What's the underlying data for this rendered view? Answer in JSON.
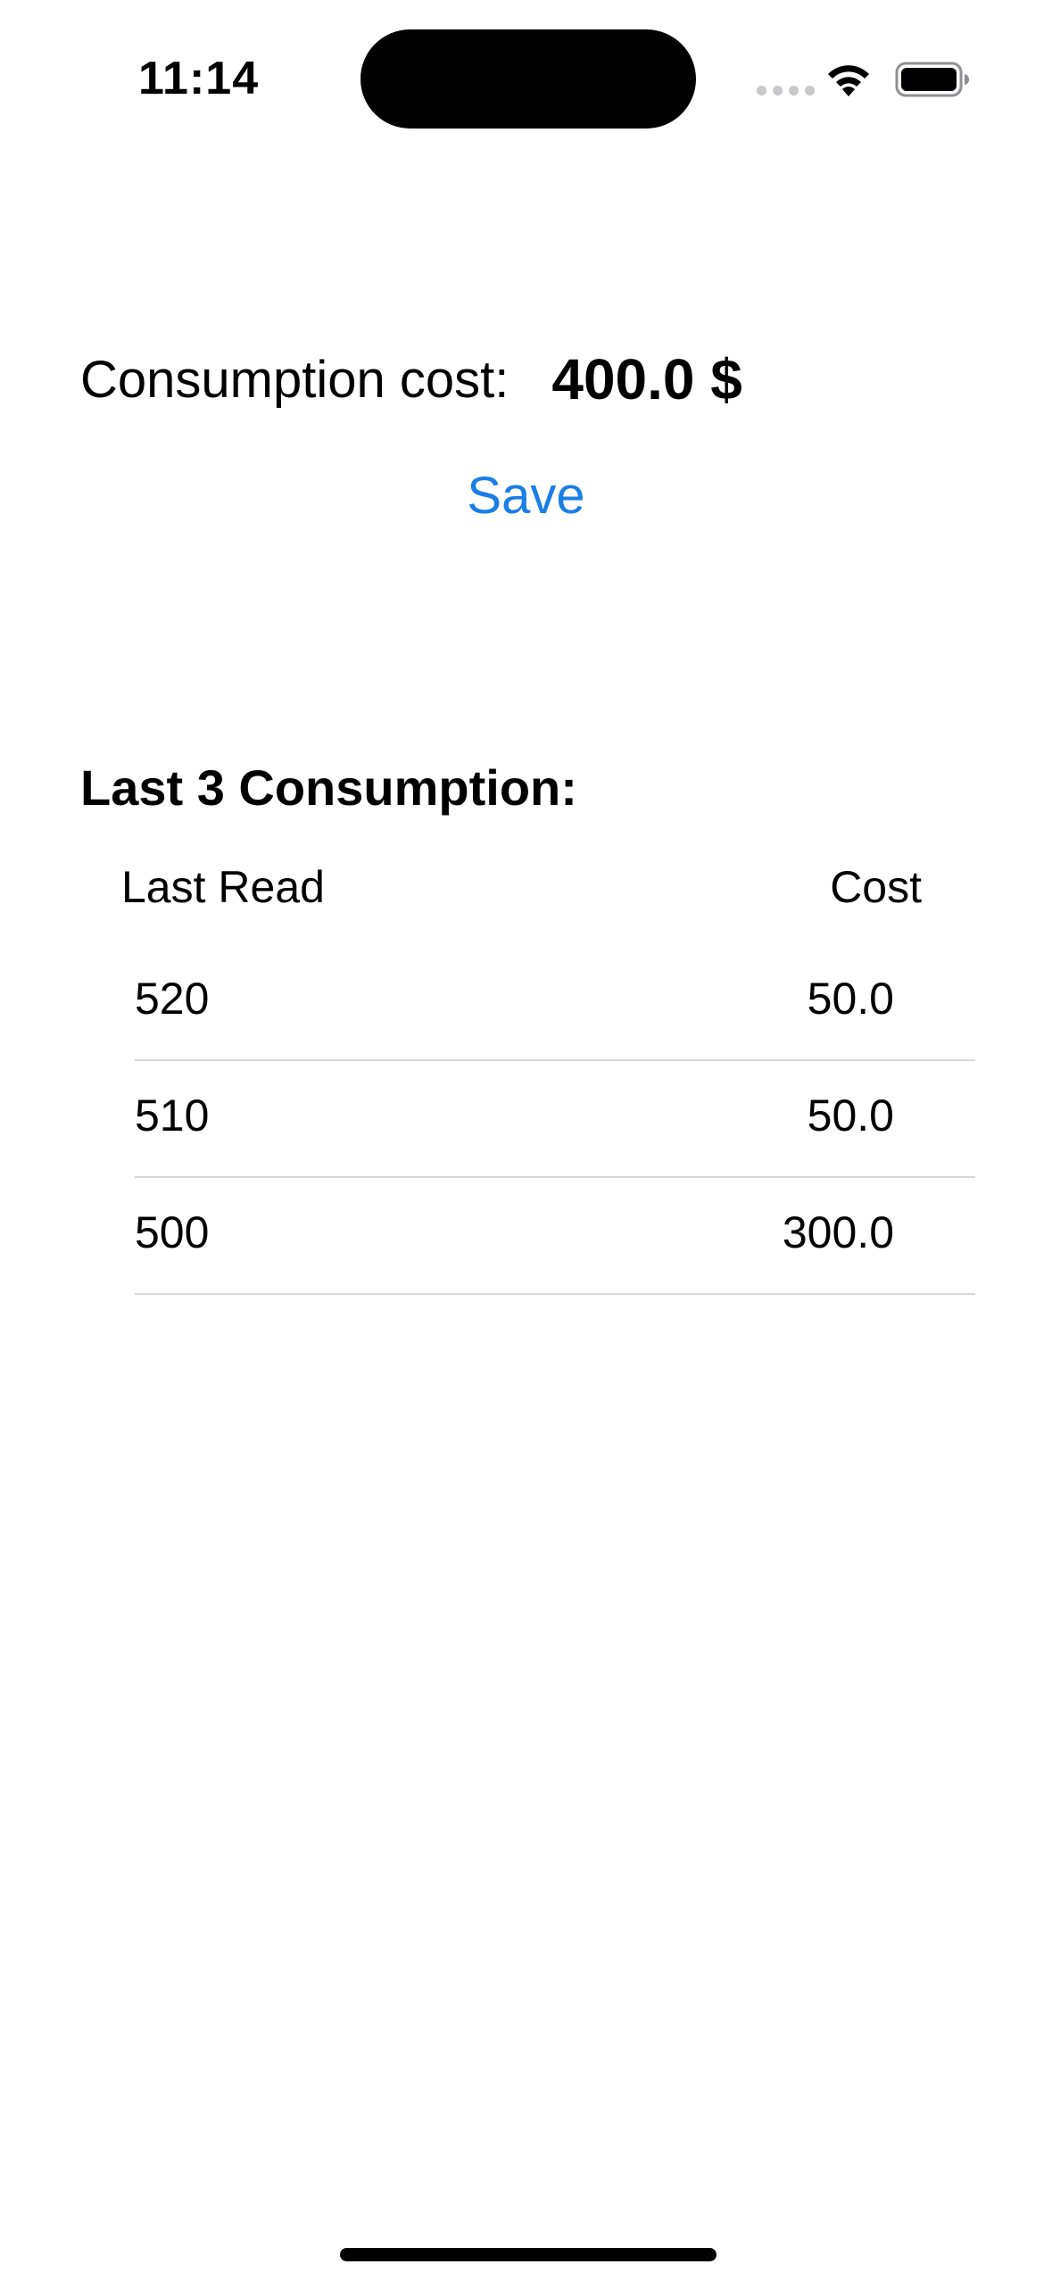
{
  "status_bar": {
    "time": "11:14",
    "icons": [
      "cellular-signal-icon",
      "wifi-icon",
      "battery-icon"
    ]
  },
  "consumption": {
    "label": "Consumption cost:",
    "value": "400.0 $"
  },
  "save_label": "Save",
  "history": {
    "title": "Last 3 Consumption:",
    "columns": {
      "read": "Last Read",
      "cost": "Cost"
    },
    "rows": [
      {
        "read": "520",
        "cost": "50.0"
      },
      {
        "read": "510",
        "cost": "50.0"
      },
      {
        "read": "500",
        "cost": "300.0"
      }
    ]
  },
  "colors": {
    "accent": "#1a7ee6",
    "separator": "#d8d8da",
    "text": "#000000",
    "background": "#ffffff"
  }
}
